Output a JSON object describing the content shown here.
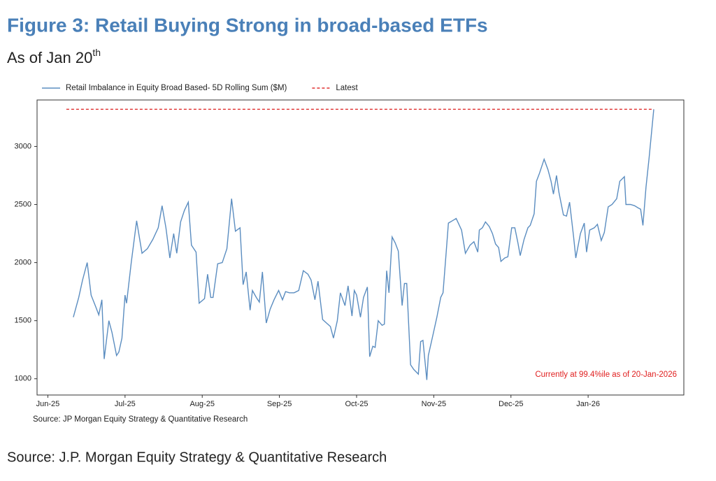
{
  "chart_data": {
    "type": "line",
    "title": "Figure 3: Retail Buying Strong in broad-based ETFs",
    "subtitle": "As of Jan 20",
    "subtitle_sup": "th",
    "annotation": "Currently at 99.4%ile as of 20-Jan-2026",
    "annotation_color": "#e02020",
    "source_note": "Source: JP Morgan Equity Strategy & Quantitative Research",
    "xlim": [
      -0.14,
      8.24
    ],
    "ylim": [
      860,
      3400
    ],
    "yticks": [
      1000,
      1500,
      2000,
      2500,
      3000
    ],
    "xticks": [
      {
        "value": 0,
        "label": "Jun-25"
      },
      {
        "value": 1,
        "label": "Jul-25"
      },
      {
        "value": 2,
        "label": "Aug-25"
      },
      {
        "value": 3,
        "label": "Sep-25"
      },
      {
        "value": 4,
        "label": "Oct-25"
      },
      {
        "value": 5,
        "label": "Nov-25"
      },
      {
        "value": 6,
        "label": "Dec-25"
      },
      {
        "value": 7,
        "label": "Jan-26"
      }
    ],
    "grid": false,
    "series": [
      {
        "name": "Retail Imbalance in Equity Broad Based- 5D Rolling Sum ($M)",
        "color": "#5b8dc0",
        "dash": false,
        "x": [
          0.33,
          0.4,
          0.45,
          0.51,
          0.56,
          0.62,
          0.66,
          0.7,
          0.73,
          0.79,
          0.83,
          0.89,
          0.92,
          0.96,
          1.0,
          1.02,
          1.08,
          1.15,
          1.22,
          1.29,
          1.36,
          1.43,
          1.48,
          1.53,
          1.58,
          1.63,
          1.67,
          1.72,
          1.77,
          1.82,
          1.86,
          1.92,
          1.96,
          2.03,
          2.07,
          2.11,
          2.14,
          2.2,
          2.26,
          2.32,
          2.38,
          2.43,
          2.49,
          2.53,
          2.57,
          2.62,
          2.65,
          2.7,
          2.74,
          2.78,
          2.83,
          2.88,
          2.93,
          2.99,
          3.04,
          3.08,
          3.13,
          3.19,
          3.25,
          3.31,
          3.37,
          3.41,
          3.46,
          3.5,
          3.56,
          3.61,
          3.66,
          3.7,
          3.75,
          3.79,
          3.85,
          3.89,
          3.94,
          3.97,
          4.0,
          4.05,
          4.09,
          4.14,
          4.17,
          4.21,
          4.24,
          4.28,
          4.33,
          4.36,
          4.39,
          4.42,
          4.46,
          4.5,
          4.54,
          4.59,
          4.62,
          4.65,
          4.7,
          4.74,
          4.8,
          4.83,
          4.86,
          4.91,
          4.93,
          4.99,
          5.04,
          5.09,
          5.12,
          5.16,
          5.19,
          5.24,
          5.29,
          5.36,
          5.41,
          5.47,
          5.52,
          5.57,
          5.59,
          5.63,
          5.67,
          5.72,
          5.76,
          5.8,
          5.84,
          5.87,
          5.92,
          5.96,
          6.01,
          6.05,
          6.09,
          6.12,
          6.17,
          6.22,
          6.25,
          6.3,
          6.33,
          6.37,
          6.43,
          6.48,
          6.52,
          6.55,
          6.59,
          6.62,
          6.68,
          6.72,
          6.76,
          6.81,
          6.84,
          6.9,
          6.95,
          6.98,
          7.02,
          7.08,
          7.12,
          7.17,
          7.21,
          7.26,
          7.31,
          7.37,
          7.41,
          7.47,
          7.49,
          7.55,
          7.6,
          7.65,
          7.68,
          7.71,
          7.75,
          7.79,
          7.85
        ],
        "values": [
          1530,
          1700,
          1850,
          2000,
          1720,
          1620,
          1550,
          1680,
          1170,
          1500,
          1400,
          1200,
          1230,
          1350,
          1720,
          1650,
          2000,
          2360,
          2080,
          2120,
          2200,
          2300,
          2490,
          2300,
          2040,
          2250,
          2080,
          2350,
          2450,
          2520,
          2150,
          2090,
          1650,
          1690,
          1900,
          1700,
          1700,
          1990,
          2000,
          2120,
          2550,
          2270,
          2300,
          1810,
          1920,
          1590,
          1760,
          1700,
          1660,
          1920,
          1480,
          1600,
          1680,
          1760,
          1680,
          1750,
          1740,
          1740,
          1760,
          1930,
          1900,
          1850,
          1680,
          1840,
          1510,
          1480,
          1450,
          1350,
          1500,
          1740,
          1630,
          1800,
          1540,
          1760,
          1720,
          1530,
          1700,
          1790,
          1190,
          1280,
          1270,
          1500,
          1460,
          1470,
          1930,
          1740,
          2220,
          2170,
          2100,
          1630,
          1820,
          1820,
          1120,
          1080,
          1040,
          1320,
          1330,
          990,
          1200,
          1380,
          1530,
          1700,
          1740,
          2080,
          2340,
          2360,
          2380,
          2280,
          2080,
          2150,
          2180,
          2090,
          2280,
          2300,
          2350,
          2310,
          2250,
          2160,
          2130,
          2010,
          2040,
          2050,
          2300,
          2300,
          2170,
          2060,
          2200,
          2300,
          2320,
          2420,
          2700,
          2770,
          2890,
          2800,
          2700,
          2590,
          2750,
          2610,
          2410,
          2400,
          2520,
          2230,
          2040,
          2250,
          2340,
          2090,
          2280,
          2300,
          2330,
          2190,
          2260,
          2480,
          2500,
          2550,
          2700,
          2740,
          2500,
          2500,
          2490,
          2470,
          2460,
          2320,
          2650,
          2900,
          3320
        ]
      },
      {
        "name": "Latest",
        "color": "#e03030",
        "dash": true,
        "x": [
          0.24,
          7.85
        ],
        "values": [
          3320,
          3320
        ]
      }
    ]
  },
  "footer": "Source: J.P. Morgan Equity Strategy & Quantitative Research"
}
